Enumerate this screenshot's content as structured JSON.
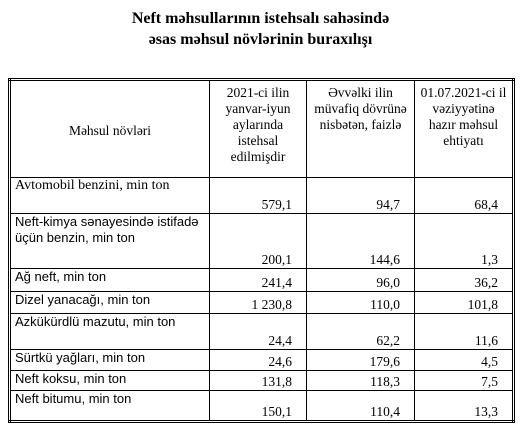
{
  "header": {
    "title": [
      "Neft məhsullarının istehsalı sahəsində",
      "əsas məhsul növlərinin buraxılışı"
    ]
  },
  "table": {
    "columns": [
      "Məhsul növləri",
      "2021-ci ilin yanvar-iyun aylarında istehsal edilmişdir",
      "Əvvəlki ilin müvafiq dövrünə nisbətən, faizlə",
      "01.07.2021-ci il vəziyyətinə hazır məhsul ehtiyatı"
    ],
    "rows": [
      [
        "Avtomobil benzini, min ton",
        "579,1",
        "94,7",
        "68,4"
      ],
      [
        "Neft-kimya sənayesində istifadə üçün benzin, min ton",
        "200,1",
        "144,6",
        "1,3"
      ],
      [
        "Ağ neft, min ton",
        "241,4",
        "96,0",
        "36,2"
      ],
      [
        "Dizel yanacağı,  min ton",
        "1 230,8",
        "110,0",
        "101,8"
      ],
      [
        "Azkükürdlü  mazutu, min ton",
        "24,4",
        "62,2",
        "11,6"
      ],
      [
        "Sürtkü yağları, min ton",
        "24,6",
        "179,6",
        "4,5"
      ],
      [
        "Neft koksu, min ton",
        "131,8",
        "118,3",
        "7,5"
      ],
      [
        "Neft bitumu, min ton",
        "150,1",
        "110,4",
        "13,3"
      ]
    ]
  }
}
